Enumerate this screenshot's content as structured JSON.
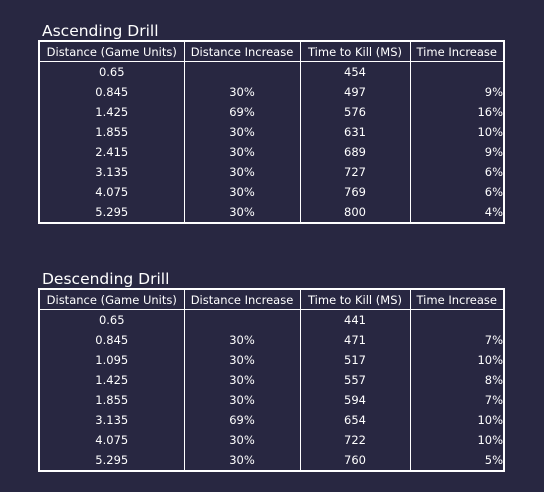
{
  "headers": [
    "Distance (Game Units)",
    "Distance Increase",
    "Time to Kill (MS)",
    "Time Increase"
  ],
  "ascending": {
    "title": "Ascending Drill",
    "rows": [
      [
        "0.65",
        "",
        "454",
        ""
      ],
      [
        "0.845",
        "30%",
        "497",
        "9%"
      ],
      [
        "1.425",
        "69%",
        "576",
        "16%"
      ],
      [
        "1.855",
        "30%",
        "631",
        "10%"
      ],
      [
        "2.415",
        "30%",
        "689",
        "9%"
      ],
      [
        "3.135",
        "30%",
        "727",
        "6%"
      ],
      [
        "4.075",
        "30%",
        "769",
        "6%"
      ],
      [
        "5.295",
        "30%",
        "800",
        "4%"
      ]
    ]
  },
  "descending": {
    "title": "Descending Drill",
    "rows": [
      [
        "0.65",
        "",
        "441",
        ""
      ],
      [
        "0.845",
        "30%",
        "471",
        "7%"
      ],
      [
        "1.095",
        "30%",
        "517",
        "10%"
      ],
      [
        "1.425",
        "30%",
        "557",
        "8%"
      ],
      [
        "1.855",
        "30%",
        "594",
        "7%"
      ],
      [
        "3.135",
        "69%",
        "654",
        "10%"
      ],
      [
        "4.075",
        "30%",
        "722",
        "10%"
      ],
      [
        "5.295",
        "30%",
        "760",
        "5%"
      ]
    ]
  }
}
